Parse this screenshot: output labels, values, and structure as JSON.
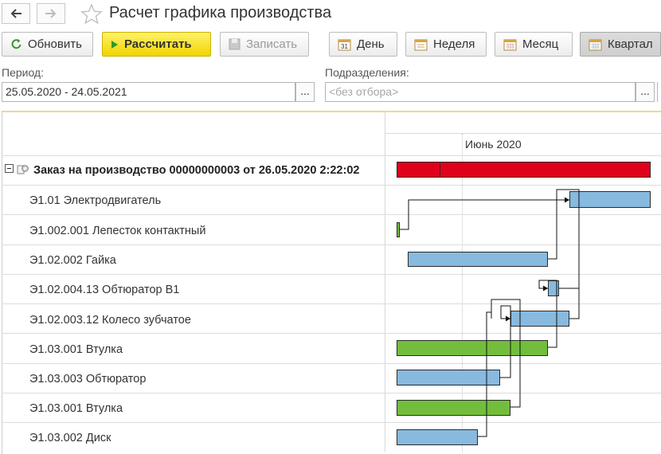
{
  "window": {
    "title": "Расчет графика производства"
  },
  "toolbar": {
    "refresh_label": "Обновить",
    "calculate_label": "Рассчитать",
    "save_label": "Записать",
    "day_label": "День",
    "week_label": "Неделя",
    "month_label": "Месяц",
    "quarter_label": "Квартал"
  },
  "filters": {
    "period_label": "Период:",
    "period_value": "25.05.2020 - 24.05.2021",
    "units_label": "Подразделения:",
    "units_placeholder": "<без отбора>",
    "choose_button": "..."
  },
  "gantt": {
    "timeline_label": "Июнь 2020",
    "order_label": "Заказ на производство 00000000003 от 26.05.2020 2:22:02",
    "rows": [
      {
        "label": "Э1.01 Электродвигатель",
        "color": "blue"
      },
      {
        "label": "Э1.002.001 Лепесток контактный",
        "color": "green"
      },
      {
        "label": "Э1.02.002 Гайка",
        "color": "blue"
      },
      {
        "label": "Э1.02.004.13 Обтюратор В1",
        "color": "blue"
      },
      {
        "label": "Э1.02.003.12 Колесо зубчатое",
        "color": "blue"
      },
      {
        "label": "Э1.03.001 Втулка",
        "color": "green"
      },
      {
        "label": "Э1.03.003 Обтюратор",
        "color": "blue"
      },
      {
        "label": "Э1.03.001 Втулка",
        "color": "green"
      },
      {
        "label": "Э1.03.002 Диск",
        "color": "blue"
      }
    ]
  },
  "colors": {
    "order_bar": "#e0001a",
    "task_bar_blue": "#88b9de",
    "task_bar_green": "#72be3c",
    "primary_button": "#f1d400"
  }
}
